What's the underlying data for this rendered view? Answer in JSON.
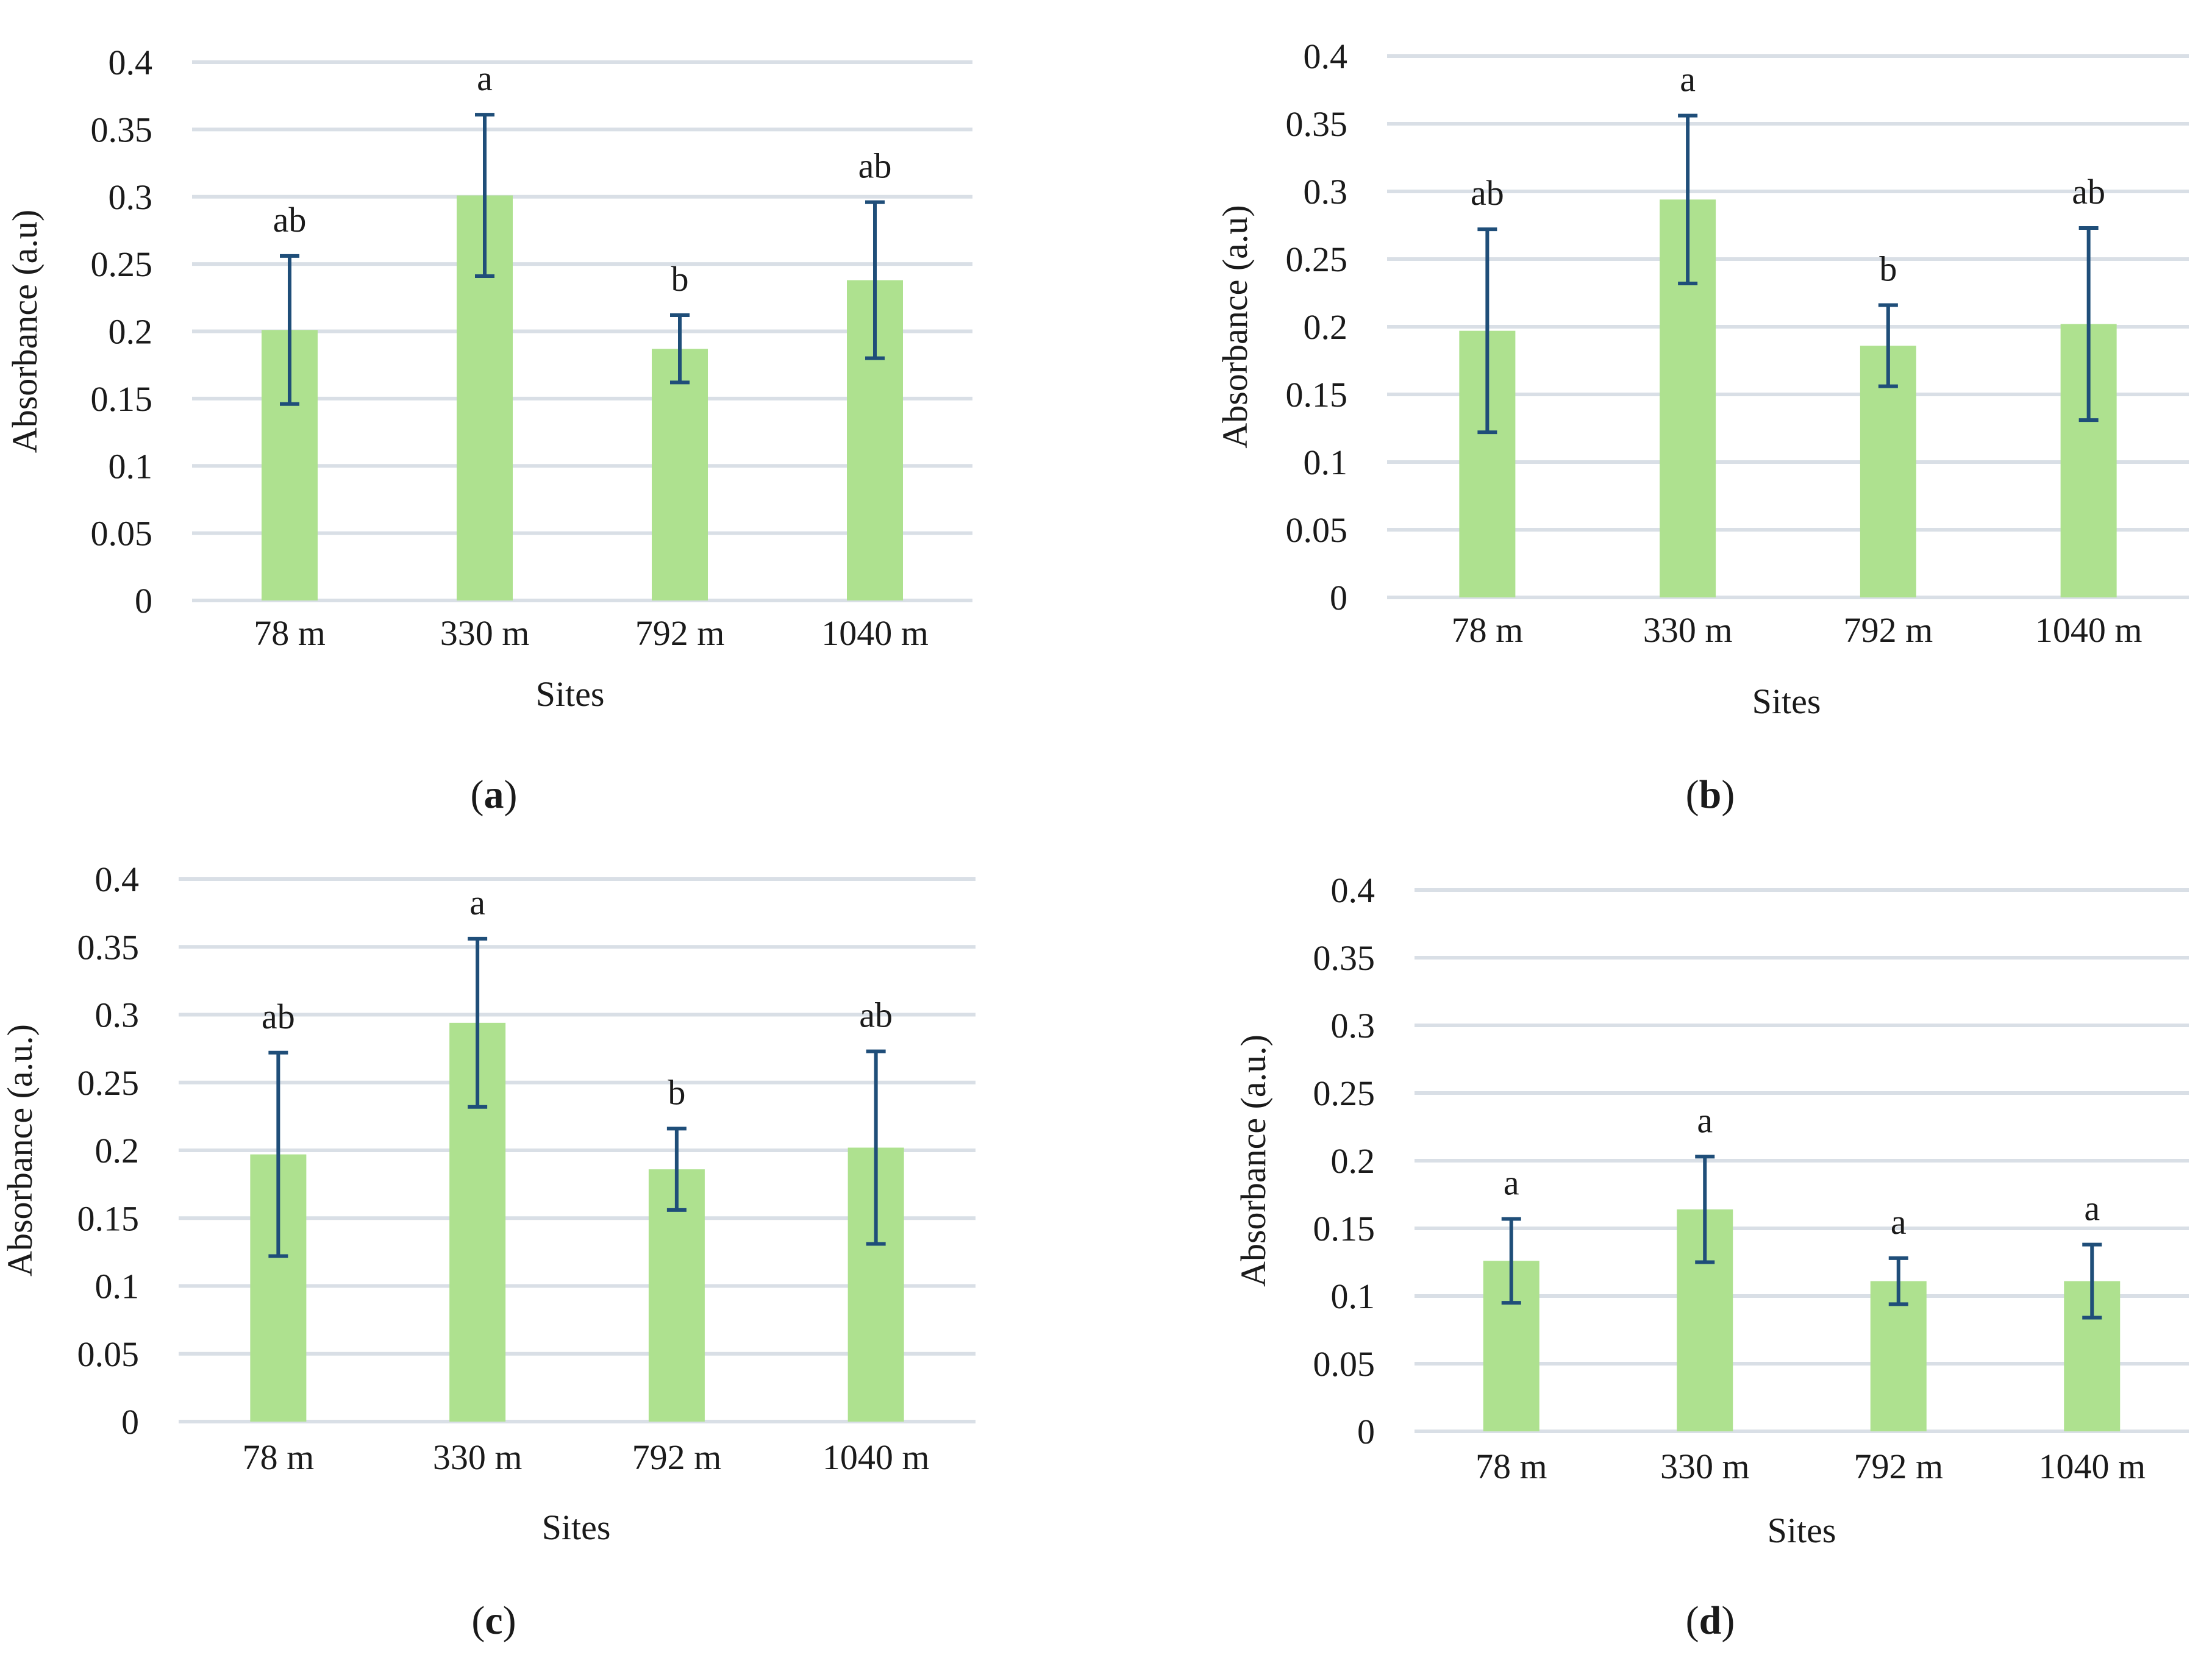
{
  "chart_data": [
    {
      "type": "bar",
      "panel_label": "a",
      "xlabel": "Sites",
      "ylabel": "Absorbance (a.u)",
      "ylim": [
        0,
        0.4
      ],
      "yticks": [
        "0",
        "0.05",
        "0.1",
        "0.15",
        "0.2",
        "0.25",
        "0.3",
        "0.35",
        "0.4"
      ],
      "categories": [
        "78 m",
        "330 m",
        "792 m",
        "1040 m"
      ],
      "values": [
        0.201,
        0.301,
        0.187,
        0.238
      ],
      "errors": [
        0.055,
        0.06,
        0.025,
        0.058
      ],
      "significance": [
        "ab",
        "a",
        "b",
        "ab"
      ]
    },
    {
      "type": "bar",
      "panel_label": "b",
      "xlabel": "Sites",
      "ylabel": "Absorbance (a.u)",
      "ylim": [
        0,
        0.4
      ],
      "yticks": [
        "0",
        "0.05",
        "0.1",
        "0.15",
        "0.2",
        "0.25",
        "0.3",
        "0.35",
        "0.4"
      ],
      "categories": [
        "78 m",
        "330 m",
        "792 m",
        "1040 m"
      ],
      "values": [
        0.197,
        0.294,
        0.186,
        0.202
      ],
      "errors": [
        0.075,
        0.062,
        0.03,
        0.071
      ],
      "significance": [
        "ab",
        "a",
        "b",
        "ab"
      ]
    },
    {
      "type": "bar",
      "panel_label": "c",
      "xlabel": "Sites",
      "ylabel": "Absorbance (a.u.)",
      "ylim": [
        0,
        0.4
      ],
      "yticks": [
        "0",
        "0.05",
        "0.1",
        "0.15",
        "0.2",
        "0.25",
        "0.3",
        "0.35",
        "0.4"
      ],
      "categories": [
        "78 m",
        "330 m",
        "792 m",
        "1040 m"
      ],
      "values": [
        0.197,
        0.294,
        0.186,
        0.202
      ],
      "errors": [
        0.075,
        0.062,
        0.03,
        0.071
      ],
      "significance": [
        "ab",
        "a",
        "b",
        "ab"
      ]
    },
    {
      "type": "bar",
      "panel_label": "d",
      "xlabel": "Sites",
      "ylabel": "Absorbance (a.u.)",
      "ylim": [
        0,
        0.4
      ],
      "yticks": [
        "0",
        "0.05",
        "0.1",
        "0.15",
        "0.2",
        "0.25",
        "0.3",
        "0.35",
        "0.4"
      ],
      "categories": [
        "78 m",
        "330 m",
        "792 m",
        "1040 m"
      ],
      "values": [
        0.126,
        0.164,
        0.111,
        0.111
      ],
      "errors": [
        0.031,
        0.039,
        0.017,
        0.027
      ],
      "significance": [
        "a",
        "a",
        "a",
        "a"
      ]
    }
  ],
  "colors": {
    "bar": "#aee18f",
    "error_bar": "#1f4e79",
    "gridline": "#d9dfe6",
    "text": "#1a1a1a"
  }
}
